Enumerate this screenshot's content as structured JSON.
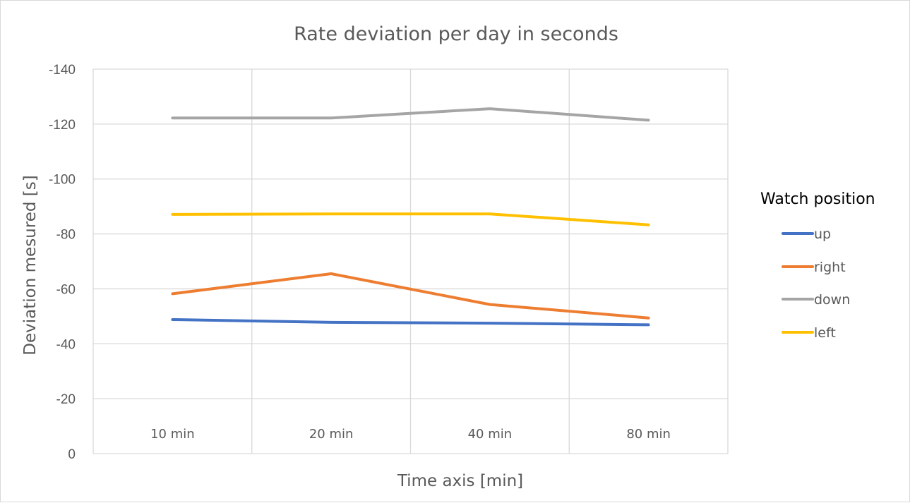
{
  "chart_data": {
    "type": "line",
    "title": "Rate deviation per day in seconds",
    "xlabel": "Time axis [min]",
    "ylabel": "Deviation mesured [s]",
    "categories": [
      "10 min",
      "20 min",
      "40 min",
      "80 min"
    ],
    "ylim": [
      0,
      -140
    ],
    "y_axis_reversed": true,
    "y_ticks": [
      0,
      -20,
      -40,
      -60,
      -80,
      -100,
      -120,
      -140
    ],
    "grid": "major horizontal and vertical",
    "legend": {
      "title": "Watch position",
      "position": "right"
    },
    "series": [
      {
        "name": "up",
        "color": "#4472c4",
        "values": [
          -48.8,
          -47.8,
          -47.5,
          -46.9
        ]
      },
      {
        "name": "right",
        "color": "#ed7d31",
        "values": [
          -58.2,
          -65.5,
          -54.3,
          -49.4
        ]
      },
      {
        "name": "down",
        "color": "#a5a5a5",
        "values": [
          -122.2,
          -122.2,
          -125.6,
          -121.4
        ]
      },
      {
        "name": "left",
        "color": "#ffc000",
        "values": [
          -87.1,
          -87.3,
          -87.3,
          -83.3
        ]
      }
    ]
  }
}
